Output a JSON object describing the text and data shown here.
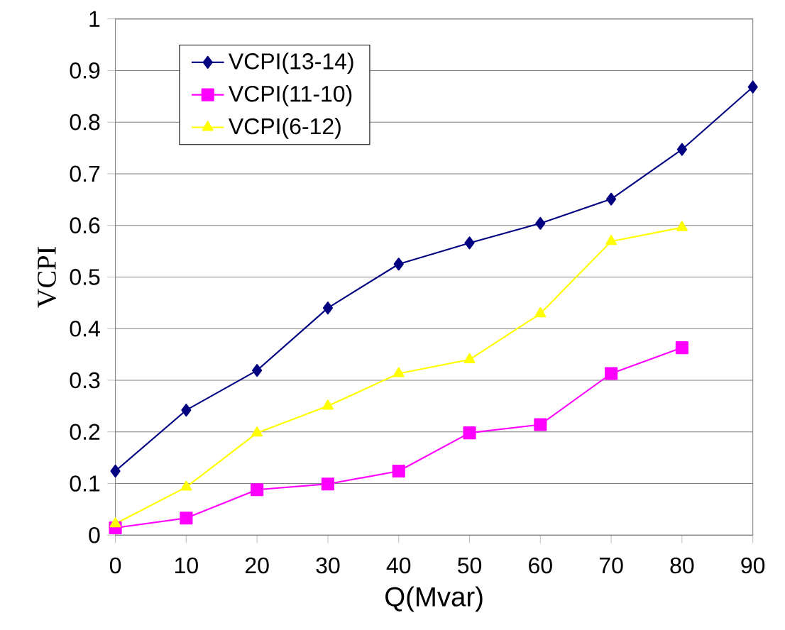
{
  "chart_data": {
    "type": "line",
    "xlabel": "Q(Mvar)",
    "ylabel": "VCPI",
    "x": [
      0,
      10,
      20,
      30,
      40,
      50,
      60,
      70,
      80,
      90
    ],
    "series": [
      {
        "name": "VCPI(13-14)",
        "color": "#000080",
        "marker": "diamond",
        "values": [
          0.124,
          0.242,
          0.319,
          0.44,
          0.525,
          0.566,
          0.604,
          0.651,
          0.747,
          0.868
        ]
      },
      {
        "name": "VCPI(11-10)",
        "color": "#ff00ff",
        "marker": "square",
        "values": [
          0.014,
          0.033,
          0.088,
          0.099,
          0.124,
          0.198,
          0.214,
          0.313,
          0.363,
          null
        ]
      },
      {
        "name": "VCPI(6-12)",
        "color": "#ffff00",
        "marker": "triangle",
        "values": [
          0.022,
          0.093,
          0.198,
          0.25,
          0.313,
          0.34,
          0.429,
          0.569,
          0.596,
          null
        ]
      }
    ],
    "xlim": [
      0,
      90
    ],
    "xticks": [
      0,
      10,
      20,
      30,
      40,
      50,
      60,
      70,
      80,
      90
    ],
    "ylim": [
      0,
      1
    ],
    "yticks": [
      0,
      0.1,
      0.2,
      0.3,
      0.4,
      0.5,
      0.6,
      0.7,
      0.8,
      0.9,
      1
    ],
    "grid": "y",
    "legend": "top left"
  }
}
